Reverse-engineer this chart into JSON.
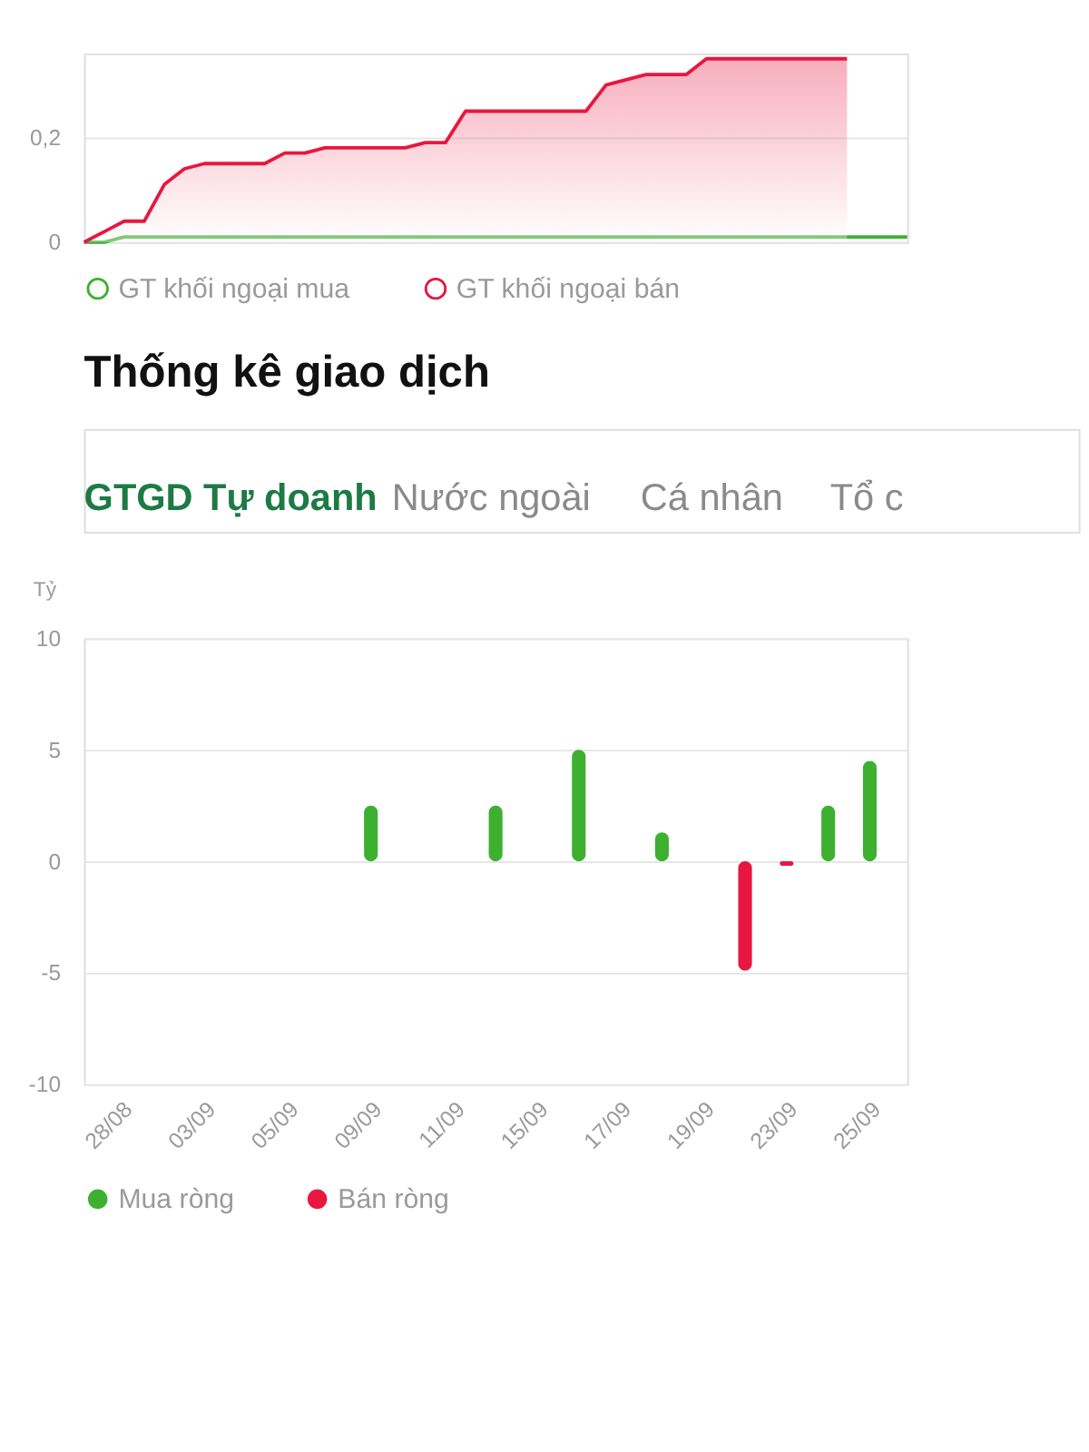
{
  "chart_data": [
    {
      "type": "line",
      "categories": [
        null,
        null,
        null,
        null,
        null,
        null,
        null,
        null,
        null,
        null,
        null,
        null,
        null,
        null,
        null,
        null,
        null,
        null,
        null,
        null,
        null,
        null,
        null,
        null,
        null,
        null,
        null,
        null,
        null,
        null,
        null,
        null,
        null,
        null,
        null,
        null,
        null,
        null,
        null,
        null,
        null,
        null
      ],
      "series": [
        {
          "name": "GT khối ngoại mua",
          "color": "#3db030",
          "type": "line",
          "values": [
            0,
            0,
            0.01,
            0.01,
            0.01,
            0.01,
            0.01,
            0.01,
            0.01,
            0.01,
            0.01,
            0.01,
            0.01,
            0.01,
            0.01,
            0.01,
            0.01,
            0.01,
            0.01,
            0.01,
            0.01,
            0.01,
            0.01,
            0.01,
            0.01,
            0.01,
            0.01,
            0.01,
            0.01,
            0.01,
            0.01,
            0.01,
            0.01,
            0.01,
            0.01,
            0.01,
            0.01,
            0.01,
            0.01,
            0.01,
            0.01,
            0.01
          ]
        },
        {
          "name": "GT khối ngoại bán",
          "color": "#e8173f",
          "type": "area",
          "values": [
            0,
            0.02,
            0.04,
            0.04,
            0.11,
            0.14,
            0.15,
            0.15,
            0.15,
            0.15,
            0.17,
            0.17,
            0.18,
            0.18,
            0.18,
            0.18,
            0.18,
            0.19,
            0.19,
            0.25,
            0.25,
            0.25,
            0.25,
            0.25,
            0.25,
            0.25,
            0.3,
            0.31,
            0.32,
            0.32,
            0.32,
            0.35,
            0.35,
            0.35,
            0.35,
            0.35,
            0.35,
            0.35,
            0.35,
            null,
            null,
            null
          ]
        }
      ],
      "ylim": [
        0,
        0.36
      ],
      "yticks": [
        0,
        {
          "value": 0.2,
          "label": "0,2"
        }
      ],
      "grid": "y",
      "legend": "bottom",
      "tick_labels": "y"
    },
    {
      "type": "bar",
      "title": "Thống kê giao dịch",
      "annotations": [
        "GTGD Tự doanh",
        "Nước ngoài",
        "Cá nhân",
        "Tổ c"
      ],
      "ylabel": "Tỷ",
      "categories": [
        "28/08",
        null,
        "03/09",
        null,
        "05/09",
        null,
        "09/09",
        null,
        "11/09",
        null,
        "15/09",
        null,
        "17/09",
        null,
        "19/09",
        null,
        "23/09",
        null,
        "25/09"
      ],
      "series": [
        {
          "name": "Mua ròng",
          "color": "#3db030",
          "values": [
            null,
            null,
            null,
            null,
            null,
            null,
            2.5,
            null,
            null,
            2.5,
            null,
            5,
            null,
            1.3,
            null,
            null,
            null,
            2.5,
            4.5
          ]
        },
        {
          "name": "Bán ròng",
          "color": "#e8173f",
          "values": [
            null,
            null,
            null,
            null,
            null,
            null,
            null,
            null,
            null,
            null,
            null,
            null,
            null,
            null,
            null,
            -4.9,
            -0.2,
            null,
            null
          ]
        }
      ],
      "ylim": [
        -10,
        10
      ],
      "yticks": [
        -10,
        -5,
        0,
        5,
        10
      ],
      "grid": "y",
      "legend": "bottom"
    }
  ]
}
